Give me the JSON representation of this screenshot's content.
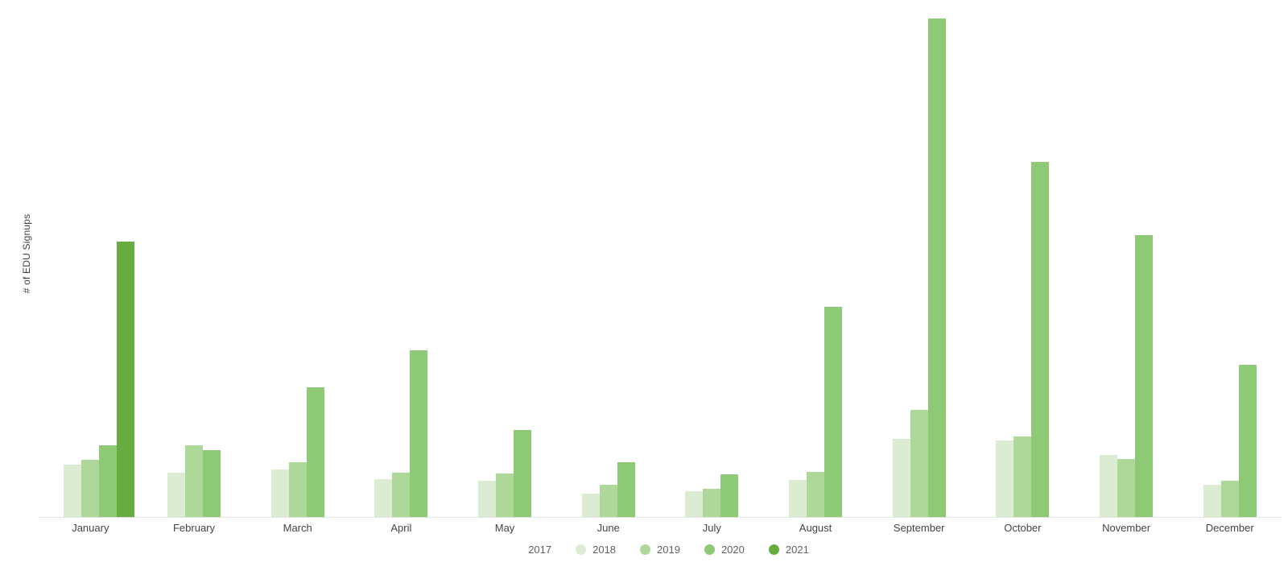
{
  "chart_data": {
    "type": "bar",
    "title": "",
    "xlabel": "",
    "ylabel": "# of EDU Signups",
    "categories": [
      "January",
      "February",
      "March",
      "April",
      "May",
      "June",
      "July",
      "August",
      "September",
      "October",
      "November",
      "December"
    ],
    "series": [
      {
        "name": "2017",
        "color": "#ffffff",
        "values": [
          0,
          0,
          0,
          0,
          0,
          0,
          0,
          0,
          0,
          0,
          0,
          0
        ]
      },
      {
        "name": "2018",
        "color": "#dcecd2",
        "values": [
          65,
          55,
          59,
          47,
          45,
          29,
          32,
          46,
          97,
          95,
          77,
          40
        ]
      },
      {
        "name": "2019",
        "color": "#aed79a",
        "values": [
          71,
          89,
          68,
          55,
          54,
          40,
          35,
          56,
          134,
          100,
          72,
          45
        ]
      },
      {
        "name": "2020",
        "color": "#8ec975",
        "values": [
          89,
          83,
          162,
          208,
          109,
          68,
          53,
          262,
          622,
          443,
          352,
          190
        ]
      },
      {
        "name": "2021",
        "color": "#67ac41",
        "values": [
          344,
          0,
          0,
          0,
          0,
          0,
          0,
          0,
          0,
          0,
          0,
          0
        ]
      }
    ],
    "ylim": [
      0,
      630
    ],
    "grid": false,
    "y_tick_labels_shown": false,
    "legend_position": "bottom",
    "legend_labels": [
      "2017",
      "2018",
      "2019",
      "2020",
      "2021"
    ]
  },
  "colors": {
    "background": "#ffffff",
    "axis_line": "#e3e3e3",
    "month_label_text": "#444444",
    "legend_text": "#616161",
    "y_title_text": "#424242"
  }
}
